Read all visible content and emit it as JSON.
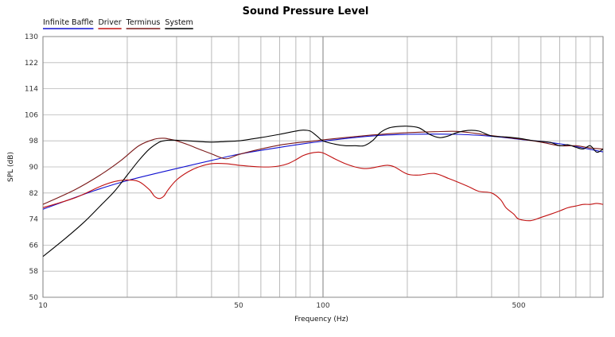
{
  "chart_data": {
    "type": "line",
    "title": "Sound Pressure Level",
    "xlabel": "Frequency (Hz)",
    "ylabel": "SPL (dB)",
    "xscale": "log",
    "xlim": [
      10,
      1000
    ],
    "ylim": [
      50,
      130
    ],
    "yticks": [
      50,
      58,
      66,
      74,
      82,
      90,
      98,
      106,
      114,
      122,
      130
    ],
    "xtick_labels": [
      {
        "value": 10,
        "label": "10"
      },
      {
        "value": 50,
        "label": "50"
      },
      {
        "value": 100,
        "label": "100"
      },
      {
        "value": 500,
        "label": "500"
      }
    ],
    "grid": true,
    "legend_position": "top-left",
    "series": [
      {
        "name": "Infinite Baffle",
        "color": "#1010d0",
        "x": [
          10,
          15,
          20,
          30,
          40,
          50,
          70,
          100,
          150,
          200,
          300,
          400,
          500,
          700,
          1000
        ],
        "y": [
          77.0,
          82.5,
          85.8,
          89.5,
          92.0,
          93.9,
          96.0,
          97.9,
          99.5,
          100.0,
          100.0,
          99.4,
          98.5,
          97.1,
          94.6
        ]
      },
      {
        "name": "Driver",
        "color": "#c01010",
        "x": [
          10,
          13,
          16,
          18,
          20,
          22,
          24,
          25,
          26,
          27,
          28,
          30,
          33,
          36,
          40,
          45,
          50,
          55,
          60,
          65,
          70,
          75,
          80,
          85,
          90,
          95,
          100,
          110,
          120,
          130,
          140,
          150,
          160,
          170,
          180,
          200,
          220,
          250,
          280,
          300,
          330,
          360,
          400,
          430,
          450,
          480,
          500,
          550,
          600,
          650,
          700,
          750,
          800,
          850,
          900,
          950,
          1000
        ],
        "y": [
          77.5,
          80.5,
          84.0,
          85.5,
          86.0,
          85.5,
          83.0,
          81.0,
          80.3,
          81.0,
          83.0,
          86.0,
          88.5,
          90.0,
          91.0,
          91.0,
          90.5,
          90.2,
          90.0,
          90.0,
          90.3,
          91.0,
          92.2,
          93.5,
          94.2,
          94.5,
          94.3,
          92.5,
          91.0,
          90.0,
          89.5,
          89.7,
          90.2,
          90.5,
          90.0,
          87.8,
          87.5,
          88.0,
          86.5,
          85.5,
          84.0,
          82.5,
          82.0,
          80.0,
          77.5,
          75.5,
          74.0,
          73.5,
          74.5,
          75.5,
          76.5,
          77.5,
          78.0,
          78.5,
          78.5,
          78.8,
          78.5
        ]
      },
      {
        "name": "Terminus",
        "color": "#7a1818",
        "x": [
          10,
          13,
          16,
          19,
          22,
          25,
          27,
          28,
          30,
          33,
          36,
          40,
          45,
          50,
          60,
          70,
          80,
          90,
          100,
          120,
          150,
          180,
          200,
          250,
          300,
          350,
          400,
          500,
          600,
          700,
          800,
          900,
          1000
        ],
        "y": [
          78.5,
          83.0,
          87.5,
          92.0,
          96.5,
          98.5,
          98.8,
          98.6,
          98.0,
          96.8,
          95.5,
          94.0,
          92.5,
          93.8,
          95.5,
          96.7,
          97.4,
          97.8,
          98.3,
          99.0,
          99.8,
          100.3,
          100.5,
          100.8,
          100.9,
          100.3,
          99.6,
          98.6,
          97.6,
          96.5,
          96.5,
          95.8,
          95.5
        ]
      },
      {
        "name": "System",
        "color": "#000000",
        "x": [
          10,
          12,
          14,
          16,
          18,
          20,
          22,
          24,
          26,
          27,
          28,
          30,
          33,
          36,
          40,
          45,
          50,
          55,
          60,
          70,
          80,
          85,
          90,
          95,
          100,
          110,
          120,
          130,
          140,
          150,
          160,
          170,
          180,
          200,
          220,
          240,
          260,
          280,
          300,
          330,
          360,
          400,
          450,
          500,
          550,
          600,
          650,
          700,
          750,
          800,
          850,
          900,
          950,
          1000
        ],
        "y": [
          62.5,
          68.0,
          73.0,
          78.0,
          82.5,
          87.5,
          92.0,
          95.5,
          97.6,
          98.0,
          98.2,
          98.2,
          98.0,
          97.8,
          97.6,
          97.8,
          98.0,
          98.5,
          99.0,
          100.0,
          101.0,
          101.3,
          101.0,
          99.5,
          98.0,
          97.0,
          96.5,
          96.5,
          96.5,
          98.0,
          100.5,
          101.8,
          102.3,
          102.5,
          102.0,
          100.0,
          99.0,
          99.5,
          100.5,
          101.2,
          101.0,
          99.5,
          99.2,
          98.8,
          98.2,
          97.8,
          97.5,
          96.5,
          96.8,
          96.0,
          95.5,
          96.5,
          94.5,
          95.5
        ]
      }
    ]
  }
}
